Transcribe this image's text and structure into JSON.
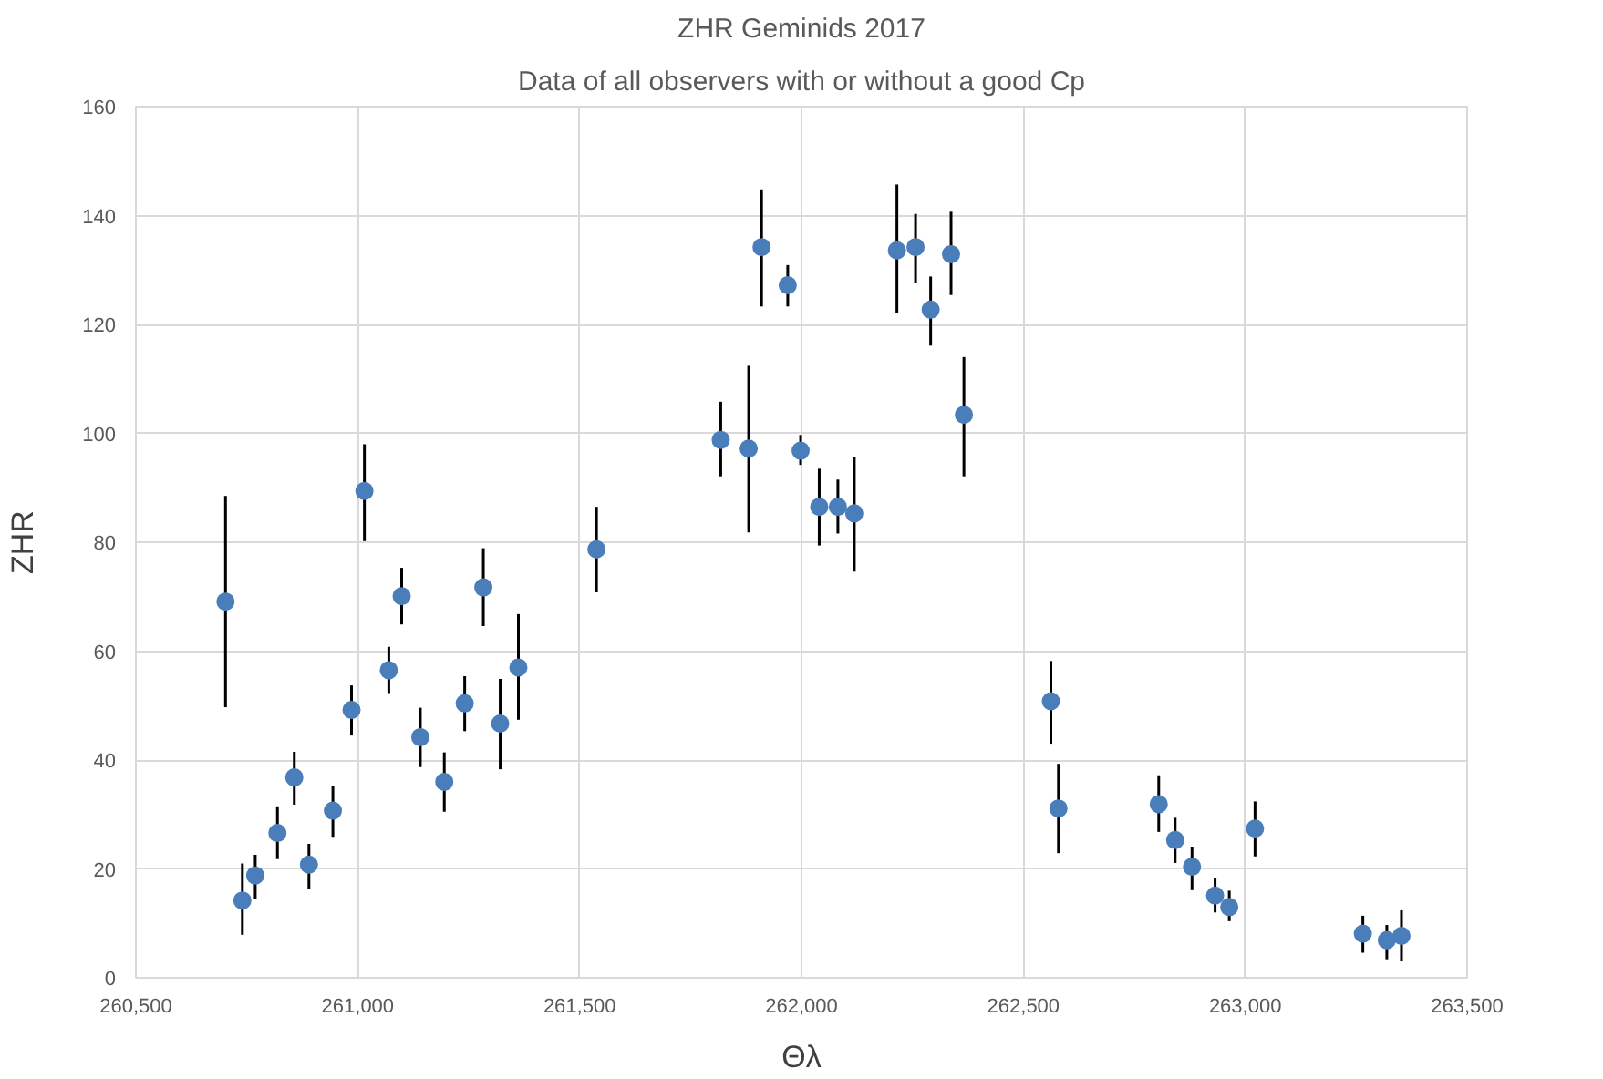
{
  "chart_data": {
    "type": "scatter",
    "title": "ZHR Geminids 2017",
    "subtitle": "Data of all observers with or without a good Cp",
    "xlabel": "Θλ",
    "ylabel": "ZHR",
    "x": [
      260702,
      260740,
      260769,
      260819,
      260857,
      260890,
      260944,
      260986,
      261015,
      261070,
      261099,
      261141,
      261195,
      261241,
      261283,
      261321,
      261362,
      261538,
      261818,
      261881,
      261910,
      261969,
      261998,
      262040,
      262082,
      262119,
      262215,
      262257,
      262291,
      262337,
      262366,
      262562,
      262579,
      262805,
      262842,
      262880,
      262932,
      262964,
      263022,
      263265,
      263319,
      263352
    ],
    "series": [
      {
        "color": "#4a7ebb",
        "values": [
          69.1,
          14.2,
          18.8,
          26.6,
          36.8,
          20.8,
          30.7,
          49.2,
          89.4,
          56.5,
          70.1,
          44.2,
          36.0,
          50.4,
          71.7,
          46.7,
          57.0,
          78.7,
          98.8,
          97.2,
          134.2,
          127.2,
          96.8,
          86.5,
          86.5,
          85.3,
          133.6,
          134.2,
          122.7,
          132.9,
          103.4,
          50.8,
          31.1,
          31.9,
          25.3,
          20.4,
          15.1,
          13.0,
          27.4,
          8.1,
          6.9,
          7.7
        ],
        "errors": [
          [
            49.7,
            88.5
          ],
          [
            7.9,
            21.0
          ],
          [
            14.5,
            22.6
          ],
          [
            21.8,
            31.5
          ],
          [
            31.8,
            41.5
          ],
          [
            16.4,
            24.6
          ],
          [
            25.9,
            35.3
          ],
          [
            44.5,
            53.7
          ],
          [
            80.2,
            98.0
          ],
          [
            52.3,
            60.8
          ],
          [
            64.9,
            75.3
          ],
          [
            38.7,
            49.6
          ],
          [
            30.5,
            41.4
          ],
          [
            45.3,
            55.4
          ],
          [
            64.6,
            78.9
          ],
          [
            38.3,
            54.9
          ],
          [
            47.4,
            66.8
          ],
          [
            70.8,
            86.5
          ],
          [
            92.1,
            105.8
          ],
          [
            81.8,
            112.4
          ],
          [
            123.3,
            144.8
          ],
          [
            123.3,
            130.9
          ],
          [
            94.2,
            99.7
          ],
          [
            79.4,
            93.5
          ],
          [
            81.6,
            91.5
          ],
          [
            74.6,
            95.6
          ],
          [
            122.1,
            145.7
          ],
          [
            127.6,
            140.3
          ],
          [
            116.1,
            128.8
          ],
          [
            125.4,
            140.7
          ],
          [
            92.1,
            114.0
          ],
          [
            43.0,
            58.2
          ],
          [
            22.9,
            39.3
          ],
          [
            26.8,
            37.2
          ],
          [
            21.1,
            29.4
          ],
          [
            16.1,
            24.1
          ],
          [
            12.0,
            18.4
          ],
          [
            10.4,
            16.0
          ],
          [
            22.3,
            32.4
          ],
          [
            4.6,
            11.4
          ],
          [
            3.4,
            9.7
          ],
          [
            3.0,
            12.4
          ]
        ]
      }
    ],
    "xlim": [
      260500,
      263500
    ],
    "xticks": [
      {
        "value": 260500,
        "label": "260,500"
      },
      {
        "value": 261000,
        "label": "261,000"
      },
      {
        "value": 261500,
        "label": "261,500"
      },
      {
        "value": 262000,
        "label": "262,000"
      },
      {
        "value": 262500,
        "label": "262,500"
      },
      {
        "value": 263000,
        "label": "263,000"
      },
      {
        "value": 263500,
        "label": "263,500"
      }
    ],
    "ylim": [
      0,
      160
    ],
    "yticks": [
      0,
      20,
      40,
      60,
      80,
      100,
      120,
      140,
      160
    ],
    "grid": true,
    "marker": "circle"
  }
}
